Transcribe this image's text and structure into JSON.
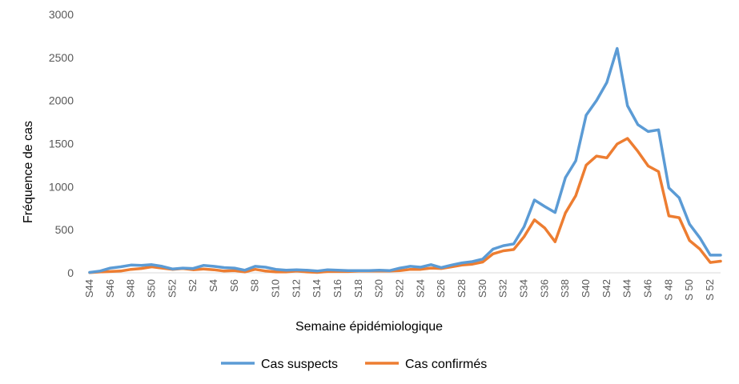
{
  "chart_data": {
    "type": "line",
    "xlabel": "Semaine épidémiologique",
    "ylabel": "Fréquence de cas",
    "ylim": [
      0,
      3000
    ],
    "yticks": [
      0,
      500,
      1000,
      1500,
      2000,
      2500,
      3000
    ],
    "grid": false,
    "legend_position": "bottom",
    "categories": [
      "S44",
      "S45",
      "S46",
      "S47",
      "S48",
      "S49",
      "S50",
      "S51",
      "S52",
      "S1",
      "S2",
      "S3",
      "S4",
      "S5",
      "S6",
      "S7",
      "S8",
      "S9",
      "S10",
      "S11",
      "S12",
      "S13",
      "S14",
      "S15",
      "S16",
      "S17",
      "S18",
      "S19",
      "S20",
      "S21",
      "S22",
      "S23",
      "S24",
      "S25",
      "S26",
      "S27",
      "S28",
      "S29",
      "S30",
      "S31",
      "S32",
      "S33",
      "S34",
      "S35",
      "S36",
      "S37",
      "S38",
      "S39",
      "S40",
      "S41",
      "S42",
      "S43",
      "S44",
      "S45",
      "S46",
      "S47",
      "S 48",
      "S 49",
      "S 50",
      "S 51",
      "S 52",
      "S 53"
    ],
    "tick_labels": [
      "S44",
      "S46",
      "S48",
      "S50",
      "S52",
      "S2",
      "S4",
      "S6",
      "S8",
      "S10",
      "S12",
      "S14",
      "S16",
      "S18",
      "S20",
      "S22",
      "S24",
      "S26",
      "S28",
      "S30",
      "S32",
      "S34",
      "S36",
      "S38",
      "S40",
      "S42",
      "S44",
      "S46",
      "S 48",
      "S 50",
      "S 52"
    ],
    "series": [
      {
        "name": "Cas suspects",
        "color": "#5B9BD5",
        "values": [
          5,
          20,
          55,
          70,
          90,
          85,
          95,
          75,
          45,
          55,
          50,
          85,
          75,
          60,
          55,
          30,
          75,
          65,
          40,
          30,
          35,
          30,
          20,
          35,
          30,
          25,
          25,
          25,
          30,
          25,
          55,
          75,
          65,
          95,
          60,
          90,
          115,
          130,
          160,
          275,
          315,
          335,
          535,
          845,
          770,
          700,
          1105,
          1300,
          1830,
          2000,
          2210,
          2605,
          1940,
          1720,
          1640,
          1660,
          985,
          870,
          565,
          405,
          205,
          205
        ]
      },
      {
        "name": "Cas confirmés",
        "color": "#ED7D31",
        "values": [
          2,
          10,
          15,
          20,
          40,
          50,
          70,
          55,
          40,
          50,
          35,
          45,
          35,
          20,
          25,
          10,
          40,
          20,
          10,
          10,
          20,
          10,
          5,
          15,
          15,
          15,
          20,
          20,
          20,
          20,
          25,
          40,
          40,
          55,
          50,
          70,
          90,
          100,
          125,
          220,
          255,
          270,
          420,
          615,
          520,
          360,
          695,
          895,
          1250,
          1355,
          1335,
          1495,
          1560,
          1410,
          1240,
          1175,
          660,
          640,
          375,
          275,
          120,
          135
        ]
      }
    ]
  }
}
